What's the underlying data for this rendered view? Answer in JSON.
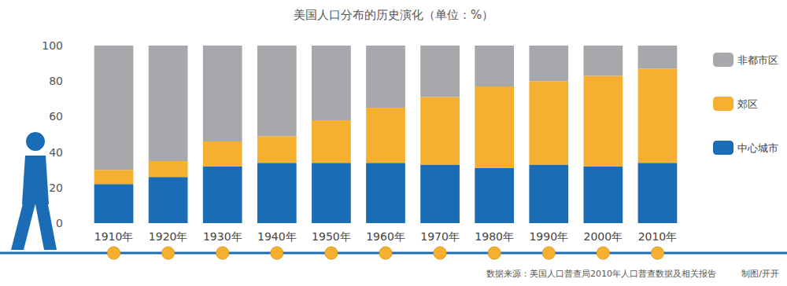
{
  "chart_data": {
    "type": "bar",
    "title": "美国人口分布的历史演化（单位：%）",
    "categories": [
      "1910年",
      "1920年",
      "1930年",
      "1940年",
      "1950年",
      "1960年",
      "1970年",
      "1980年",
      "1990年",
      "2000年",
      "2010年"
    ],
    "series": [
      {
        "name": "中心城市",
        "color": "#1a6db5",
        "values": [
          22,
          26,
          32,
          34,
          34,
          34,
          33,
          31,
          33,
          32,
          34
        ]
      },
      {
        "name": "郊区",
        "color": "#f5b031",
        "values": [
          8,
          9,
          14,
          15,
          24,
          31,
          38,
          46,
          47,
          51,
          53
        ]
      },
      {
        "name": "非都市区",
        "color": "#a7a8ab",
        "values": [
          70,
          65,
          54,
          51,
          42,
          35,
          29,
          23,
          20,
          17,
          13
        ]
      }
    ],
    "stacked": true,
    "ylim": [
      0,
      100
    ],
    "yticks": [
      0,
      20,
      40,
      60,
      80,
      100
    ],
    "grid": false,
    "legend": "right",
    "annotations": [
      "数据来源：美国人口普查局2010年人口普查数据及相关报告",
      "制图/开开"
    ]
  }
}
